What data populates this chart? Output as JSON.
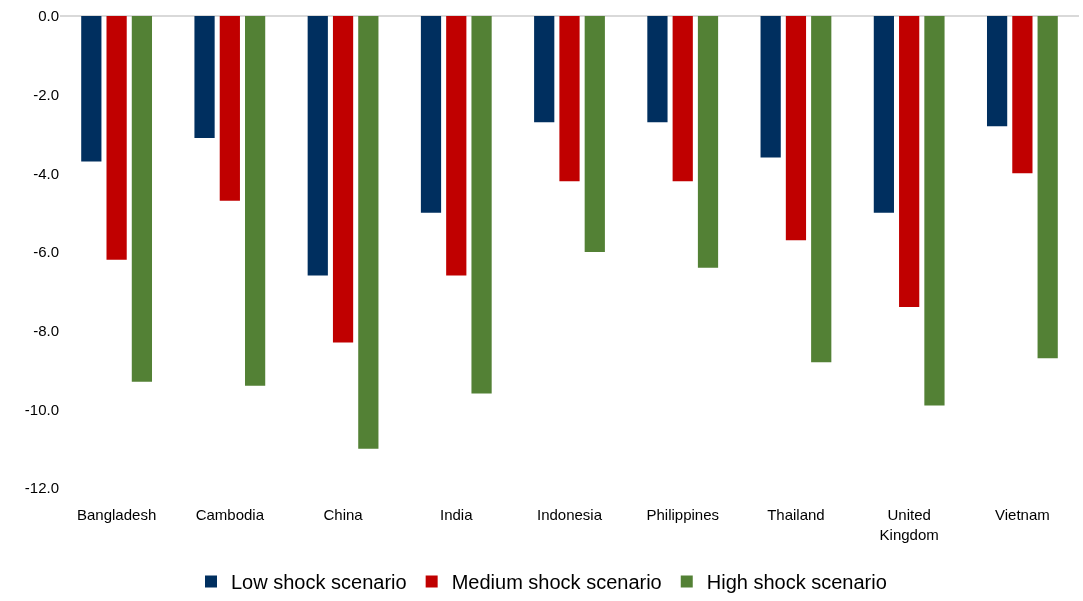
{
  "chart_data": {
    "type": "bar",
    "categories": [
      "Bangladesh",
      "Cambodia",
      "China",
      "India",
      "Indonesia",
      "Philippines",
      "Thailand",
      "United Kingdom",
      "Vietnam"
    ],
    "series": [
      {
        "name": "Low shock scenario",
        "color": "#002f5f",
        "values": [
          -3.7,
          -3.1,
          -6.6,
          -5.0,
          -2.7,
          -2.7,
          -3.6,
          -5.0,
          -2.8
        ]
      },
      {
        "name": "Medium shock scenario",
        "color": "#c00000",
        "values": [
          -6.2,
          -4.7,
          -8.3,
          -6.6,
          -4.2,
          -4.2,
          -5.7,
          -7.4,
          -4.0
        ]
      },
      {
        "name": "High shock scenario",
        "color": "#538135",
        "values": [
          -9.3,
          -9.4,
          -11.0,
          -9.6,
          -6.0,
          -6.4,
          -8.8,
          -9.9,
          -8.7
        ]
      }
    ],
    "ylim": [
      -12,
      0
    ],
    "yticks": [
      {
        "value": 0,
        "label": "0.0"
      },
      {
        "value": -2,
        "label": "-2.0"
      },
      {
        "value": -4,
        "label": "-4.0"
      },
      {
        "value": -6,
        "label": "-6.0"
      },
      {
        "value": -8,
        "label": "-8.0"
      },
      {
        "value": -10,
        "label": "-10.0"
      },
      {
        "value": -12,
        "label": "-12.0"
      }
    ],
    "grid": false,
    "legend": "bottom"
  }
}
